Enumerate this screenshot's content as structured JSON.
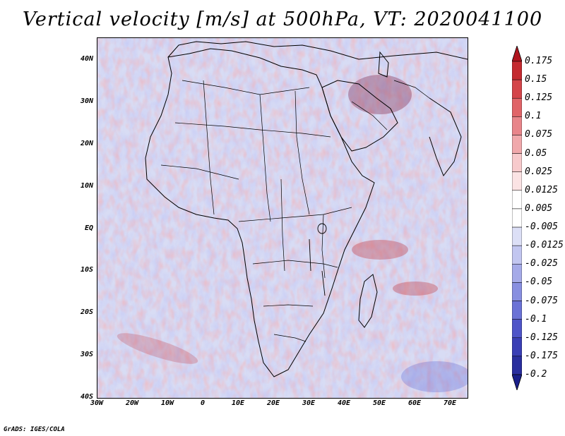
{
  "title": "Vertical velocity [m/s] at 500hPa, VT: 2020041100",
  "credit": "GrADS: IGES/COLA",
  "y_ticks": [
    "40N",
    "30N",
    "20N",
    "10N",
    "EQ",
    "10S",
    "20S",
    "30S",
    "40S"
  ],
  "x_ticks": [
    "30W",
    "20W",
    "10W",
    "0",
    "10E",
    "20E",
    "30E",
    "40E",
    "50E",
    "60E",
    "70E"
  ],
  "colorbar": {
    "labels": [
      "0.175",
      "0.15",
      "0.125",
      "0.1",
      "0.075",
      "0.05",
      "0.025",
      "0.0125",
      "0.005",
      "-0.005",
      "-0.0125",
      "-0.025",
      "-0.05",
      "-0.075",
      "-0.1",
      "-0.125",
      "-0.175",
      "-0.2"
    ],
    "colors": [
      "#b0141e",
      "#c42a30",
      "#d4454a",
      "#e06468",
      "#e8858a",
      "#f0a8ab",
      "#f7cacc",
      "#fbe3e4",
      "#ffffff",
      "#ffffff",
      "#dcdff6",
      "#c2c6f0",
      "#a5aae8",
      "#888fe0",
      "#6b72d6",
      "#4f55c8",
      "#3a3fb5",
      "#2a2f9e",
      "#1a1f8a"
    ]
  },
  "map": {
    "lon_range": [
      -30,
      75
    ],
    "lat_range": [
      -40,
      45
    ],
    "ocean_base": "#d8dcf4"
  }
}
